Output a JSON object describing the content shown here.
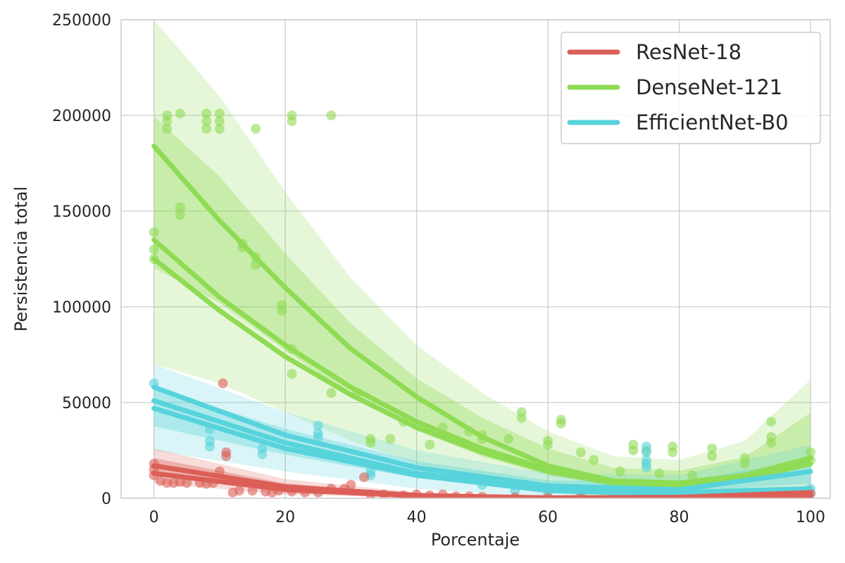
{
  "chart_data": {
    "type": "scatter",
    "title": "",
    "xlabel": "Porcentaje",
    "ylabel": "Persistencia total",
    "xlim": [
      -5,
      103
    ],
    "ylim": [
      0,
      250000
    ],
    "x_ticks": [
      0,
      20,
      40,
      60,
      80,
      100
    ],
    "y_ticks": [
      0,
      50000,
      100000,
      150000,
      200000,
      250000
    ],
    "grid": true,
    "legend_position": "top-right",
    "series": [
      {
        "name": "ResNet-18",
        "color": "#db5f57",
        "fit_curves": [
          {
            "x": [
              0,
              20,
              40,
              60,
              80,
              100
            ],
            "y": [
              17000,
              6000,
              1500,
              200,
              500,
              3000
            ]
          },
          {
            "x": [
              0,
              20,
              40,
              60,
              80,
              100
            ],
            "y": [
              13000,
              4500,
              1200,
              200,
              300,
              1500
            ]
          }
        ],
        "band": {
          "x": [
            0,
            20,
            40,
            60,
            80,
            100
          ],
          "lower": [
            8000,
            2000,
            200,
            0,
            0,
            0
          ],
          "upper": [
            26000,
            10000,
            3000,
            800,
            1500,
            6000
          ]
        },
        "points": [
          [
            0,
            15000
          ],
          [
            0,
            18000
          ],
          [
            0,
            12000
          ],
          [
            1,
            9000
          ],
          [
            2,
            8000
          ],
          [
            3,
            8000
          ],
          [
            4,
            8500
          ],
          [
            5,
            8000
          ],
          [
            7,
            8000
          ],
          [
            8,
            7500
          ],
          [
            9,
            8000
          ],
          [
            10,
            14000
          ],
          [
            10.5,
            60000
          ],
          [
            11,
            24000
          ],
          [
            11,
            22000
          ],
          [
            12,
            3000
          ],
          [
            13,
            4000
          ],
          [
            15,
            4000
          ],
          [
            17,
            3500
          ],
          [
            18,
            3000
          ],
          [
            19,
            4000
          ],
          [
            21,
            3500
          ],
          [
            23,
            3000
          ],
          [
            25,
            3000
          ],
          [
            27,
            5000
          ],
          [
            29,
            5000
          ],
          [
            30,
            7000
          ],
          [
            32,
            11000
          ],
          [
            33,
            2000
          ],
          [
            35,
            2000
          ],
          [
            38,
            1500
          ],
          [
            40,
            2000
          ],
          [
            42,
            1500
          ],
          [
            44,
            2000
          ],
          [
            46,
            1000
          ],
          [
            48,
            1000
          ],
          [
            50,
            800
          ],
          [
            55,
            500
          ],
          [
            60,
            300
          ],
          [
            65,
            200
          ],
          [
            70,
            200
          ],
          [
            75,
            300
          ],
          [
            80,
            300
          ],
          [
            85,
            500
          ],
          [
            90,
            800
          ],
          [
            95,
            1500
          ],
          [
            100,
            2500
          ]
        ]
      },
      {
        "name": "DenseNet-121",
        "color": "#8fdb54",
        "fit_curves": [
          {
            "x": [
              0,
              10,
              20,
              30,
              40,
              50,
              60,
              70,
              80,
              90,
              100
            ],
            "y": [
              184000,
              145000,
              110000,
              78000,
              53000,
              32000,
              17000,
              9000,
              7000,
              11000,
              21000
            ]
          },
          {
            "x": [
              0,
              10,
              20,
              30,
              40,
              50,
              60,
              70,
              80,
              90,
              100
            ],
            "y": [
              135000,
              105000,
              80000,
              58000,
              40000,
              26000,
              15000,
              9000,
              8000,
              12000,
              21000
            ]
          },
          {
            "x": [
              0,
              10,
              20,
              30,
              40,
              50,
              60,
              70,
              80,
              90,
              100
            ],
            "y": [
              125000,
              98000,
              74000,
              54000,
              37000,
              24000,
              14000,
              8000,
              7000,
              10000,
              18000
            ]
          }
        ],
        "band": {
          "x": [
            0,
            10,
            20,
            30,
            40,
            50,
            60,
            70,
            80,
            90,
            100
          ],
          "lower": [
            70000,
            60000,
            45000,
            30000,
            18000,
            9000,
            3000,
            0,
            0,
            0,
            0
          ],
          "upper": [
            250000,
            210000,
            160000,
            115000,
            80000,
            55000,
            35000,
            22000,
            20000,
            30000,
            62000
          ]
        },
        "points": [
          [
            0,
            139000
          ],
          [
            0,
            130000
          ],
          [
            0,
            125000
          ],
          [
            2,
            200000
          ],
          [
            2,
            197000
          ],
          [
            2,
            193000
          ],
          [
            4,
            201000
          ],
          [
            4,
            152000
          ],
          [
            4,
            148000
          ],
          [
            8,
            201000
          ],
          [
            8,
            197000
          ],
          [
            8,
            193000
          ],
          [
            10,
            201000
          ],
          [
            10,
            197000
          ],
          [
            10,
            193000
          ],
          [
            13.5,
            133000
          ],
          [
            13.5,
            131000
          ],
          [
            15.5,
            193000
          ],
          [
            15.5,
            126000
          ],
          [
            15.5,
            122000
          ],
          [
            19.5,
            101000
          ],
          [
            19.5,
            98000
          ],
          [
            21,
            200000
          ],
          [
            21,
            197000
          ],
          [
            21,
            78000
          ],
          [
            21,
            65000
          ],
          [
            27,
            200000
          ],
          [
            27,
            55000
          ],
          [
            31,
            55000
          ],
          [
            33,
            31000
          ],
          [
            33,
            29000
          ],
          [
            36,
            31000
          ],
          [
            38,
            40000
          ],
          [
            42,
            28000
          ],
          [
            44,
            37000
          ],
          [
            48,
            35000
          ],
          [
            50,
            33000
          ],
          [
            50,
            31000
          ],
          [
            54,
            31000
          ],
          [
            56,
            45000
          ],
          [
            56,
            42000
          ],
          [
            60,
            30000
          ],
          [
            60,
            28000
          ],
          [
            62,
            41000
          ],
          [
            62,
            39000
          ],
          [
            65,
            24000
          ],
          [
            67,
            20000
          ],
          [
            71,
            14000
          ],
          [
            73,
            28000
          ],
          [
            73,
            25000
          ],
          [
            75,
            25000
          ],
          [
            77,
            13000
          ],
          [
            79,
            27000
          ],
          [
            79,
            24000
          ],
          [
            82,
            12000
          ],
          [
            85,
            26000
          ],
          [
            85,
            22000
          ],
          [
            90,
            21000
          ],
          [
            90,
            18000
          ],
          [
            94,
            40000
          ],
          [
            94,
            32000
          ],
          [
            94,
            29000
          ],
          [
            100,
            24000
          ],
          [
            100,
            20000
          ]
        ]
      },
      {
        "name": "EfficientNet-B0",
        "color": "#57d3db",
        "fit_curves": [
          {
            "x": [
              0,
              20,
              40,
              60,
              80,
              100
            ],
            "y": [
              58000,
              33000,
              16000,
              6500,
              4500,
              14000
            ]
          },
          {
            "x": [
              0,
              20,
              40,
              60,
              80,
              100
            ],
            "y": [
              51000,
              29000,
              13000,
              5000,
              3000,
              5000
            ]
          },
          {
            "x": [
              0,
              20,
              40,
              60,
              80,
              100
            ],
            "y": [
              47000,
              26000,
              12000,
              4000,
              2000,
              3000
            ]
          }
        ],
        "band": {
          "x": [
            0,
            20,
            40,
            60,
            80,
            100
          ],
          "lower": [
            25000,
            14000,
            5000,
            0,
            0,
            0
          ],
          "upper": [
            70000,
            45000,
            25000,
            13000,
            12000,
            28000
          ]
        },
        "points": [
          [
            0,
            60000
          ],
          [
            8.5,
            36000
          ],
          [
            8.5,
            30000
          ],
          [
            8.5,
            27000
          ],
          [
            16.5,
            26000
          ],
          [
            16.5,
            23000
          ],
          [
            25,
            38000
          ],
          [
            25,
            34000
          ],
          [
            25,
            32000
          ],
          [
            33,
            14000
          ],
          [
            33,
            12000
          ],
          [
            42,
            13000
          ],
          [
            50,
            7000
          ],
          [
            55,
            4000
          ],
          [
            60,
            3000
          ],
          [
            65,
            2000
          ],
          [
            70,
            2000
          ],
          [
            75,
            27000
          ],
          [
            75,
            24000
          ],
          [
            75,
            20000
          ],
          [
            75,
            18000
          ],
          [
            75,
            16000
          ],
          [
            80,
            2000
          ],
          [
            85,
            2000
          ],
          [
            90,
            3000
          ],
          [
            95,
            3000
          ],
          [
            100,
            5000
          ],
          [
            100,
            2500
          ]
        ]
      }
    ]
  }
}
